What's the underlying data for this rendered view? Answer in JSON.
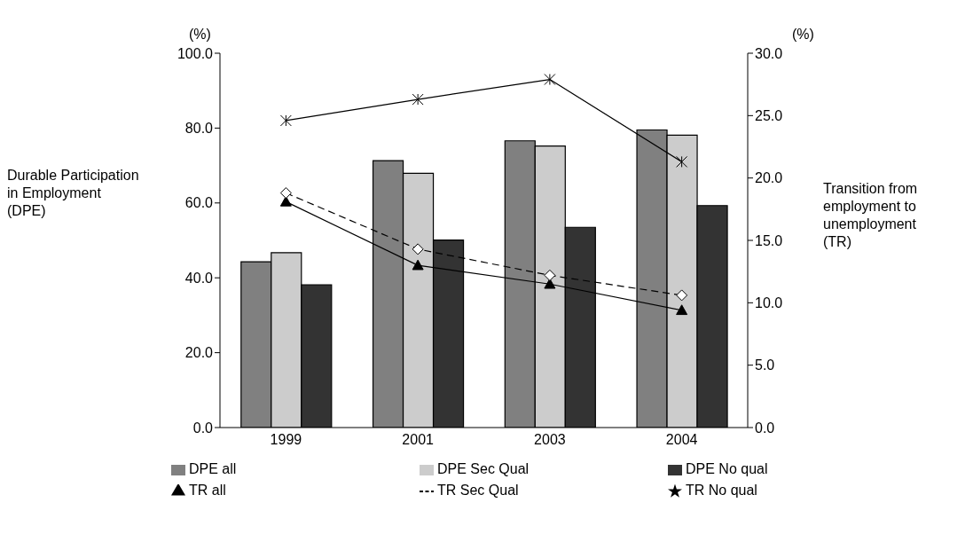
{
  "chart_data": {
    "type": "bar",
    "categories": [
      "1999",
      "2001",
      "2003",
      "2004"
    ],
    "ylabel": "Durable Participation in Employment (DPE)",
    "y2label": "Transition from employment to unemployment (TR)",
    "ylim": [
      0,
      100
    ],
    "yticks": [
      {
        "value": 0,
        "label": "0.0"
      },
      {
        "value": 20,
        "label": "20.0"
      },
      {
        "value": 40,
        "label": "40.0"
      },
      {
        "value": 60,
        "label": "60.0"
      },
      {
        "value": 80,
        "label": "80.0"
      },
      {
        "value": 100,
        "label": "100.0"
      }
    ],
    "y2lim": [
      0,
      30
    ],
    "y2ticks": [
      {
        "value": 0,
        "label": "0.0"
      },
      {
        "value": 5,
        "label": "5.0"
      },
      {
        "value": 10,
        "label": "10.0"
      },
      {
        "value": 15,
        "label": "15.0"
      },
      {
        "value": 20,
        "label": "20.0"
      },
      {
        "value": 25,
        "label": "25.0"
      },
      {
        "value": 30,
        "label": "30.0"
      }
    ],
    "annotations": [
      "(%)",
      "(%)"
    ],
    "grid": false,
    "legend": "bottom",
    "series": [
      {
        "name": "DPE all",
        "color": "#808080",
        "values": [
          44.3,
          71.3,
          76.6,
          79.5
        ]
      },
      {
        "name": "DPE Sec Qual",
        "color": "#cccccc",
        "values": [
          46.7,
          67.9,
          75.2,
          78.1
        ]
      },
      {
        "name": "DPE No qual",
        "color": "#333333",
        "values": [
          38.1,
          50.1,
          53.5,
          59.3
        ]
      },
      {
        "name": "TR all",
        "type": "line",
        "axis": "y2",
        "color": "#000000",
        "marker": "triangle",
        "line_style": "solid",
        "values": [
          18.1,
          13.0,
          11.5,
          9.4
        ]
      },
      {
        "name": "TR Sec Qual",
        "type": "line",
        "axis": "y2",
        "color": "#000000",
        "marker": "diamond",
        "line_style": "dashed",
        "values": [
          18.8,
          14.3,
          12.2,
          10.6
        ]
      },
      {
        "name": "TR No qual",
        "type": "line",
        "axis": "y2",
        "color": "#000000",
        "marker": "cross",
        "line_style": "solid",
        "values": [
          24.6,
          26.3,
          27.9,
          21.3
        ]
      }
    ]
  }
}
